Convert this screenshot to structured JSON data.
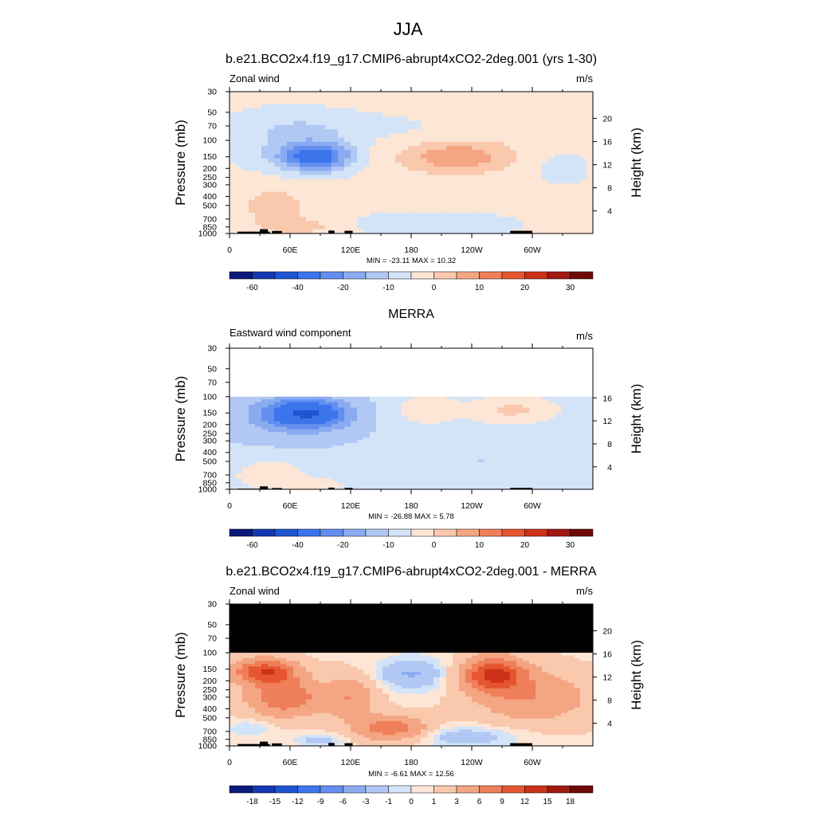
{
  "figure": {
    "title": "JJA"
  },
  "chart_data": [
    {
      "type": "heatmap",
      "title": "b.e21.BCO2x4.f19_g17.CMIP6-abrupt4xCO2-2deg.001 (yrs 1-30)",
      "left_label": "Zonal wind",
      "units": "m/s",
      "ylabel": "Pressure (mb)",
      "ylabel_right": "Height (km)",
      "x_ticks": [
        "0",
        "60E",
        "120E",
        "180",
        "120W",
        "60W"
      ],
      "x_range_deg": [
        0,
        360
      ],
      "y_ticks": [
        "30",
        "50",
        "70",
        "100",
        "150",
        "200",
        "250",
        "300",
        "400",
        "500",
        "700",
        "850",
        "1000"
      ],
      "y_log_scale": true,
      "ylim_mb": [
        1000,
        30
      ],
      "height_ticks_km": [
        "4",
        "8",
        "12",
        "16",
        "20"
      ],
      "stats": "MIN = -23.11  MAX =  10.32",
      "colorbar_ticks": [
        "-60",
        "-40",
        "-20",
        "-10",
        "0",
        "10",
        "20",
        "30"
      ],
      "data_top_mb": 30
    },
    {
      "type": "heatmap",
      "title": "MERRA",
      "left_label": "Eastward wind component",
      "units": "m/s",
      "ylabel": "Pressure (mb)",
      "ylabel_right": "Height (km)",
      "x_ticks": [
        "0",
        "60E",
        "120E",
        "180",
        "120W",
        "60W"
      ],
      "x_range_deg": [
        0,
        360
      ],
      "y_ticks": [
        "30",
        "50",
        "70",
        "100",
        "150",
        "200",
        "250",
        "300",
        "400",
        "500",
        "700",
        "850",
        "1000"
      ],
      "y_log_scale": true,
      "ylim_mb": [
        1000,
        30
      ],
      "height_ticks_km": [
        "4",
        "8",
        "12",
        "16"
      ],
      "stats": "MIN = -26.88  MAX =   5.78",
      "colorbar_ticks": [
        "-60",
        "-40",
        "-20",
        "-10",
        "0",
        "10",
        "20",
        "30"
      ],
      "data_top_mb": 100
    },
    {
      "type": "heatmap",
      "title": "b.e21.BCO2x4.f19_g17.CMIP6-abrupt4xCO2-2deg.001 - MERRA",
      "left_label": "Zonal wind",
      "units": "m/s",
      "ylabel": "Pressure (mb)",
      "ylabel_right": "Height (km)",
      "x_ticks": [
        "0",
        "60E",
        "120E",
        "180",
        "120W",
        "60W"
      ],
      "x_range_deg": [
        0,
        360
      ],
      "y_ticks": [
        "30",
        "50",
        "70",
        "100",
        "150",
        "200",
        "250",
        "300",
        "400",
        "500",
        "700",
        "850",
        "1000"
      ],
      "y_log_scale": true,
      "ylim_mb": [
        1000,
        30
      ],
      "height_ticks_km": [
        "4",
        "8",
        "12",
        "16",
        "20"
      ],
      "stats": "MIN =  -6.61  MAX =  12.56",
      "colorbar_ticks": [
        "-18",
        "-15",
        "-12",
        "-9",
        "-6",
        "-3",
        "-1",
        "0",
        "1",
        "3",
        "6",
        "9",
        "12",
        "15",
        "18"
      ],
      "data_top_mb": 100
    }
  ],
  "colors": {
    "palette": [
      "#0a1a7a",
      "#1438b4",
      "#1e55d2",
      "#3c74ec",
      "#628fef",
      "#8aabf0",
      "#b1c8f4",
      "#d4e4f8",
      "#fde6d6",
      "#f9c8ad",
      "#f4a582",
      "#ef7f5a",
      "#e55630",
      "#cc3218",
      "#a01a10",
      "#6d0a08"
    ],
    "missing": "#000000",
    "topography": "#000000"
  }
}
